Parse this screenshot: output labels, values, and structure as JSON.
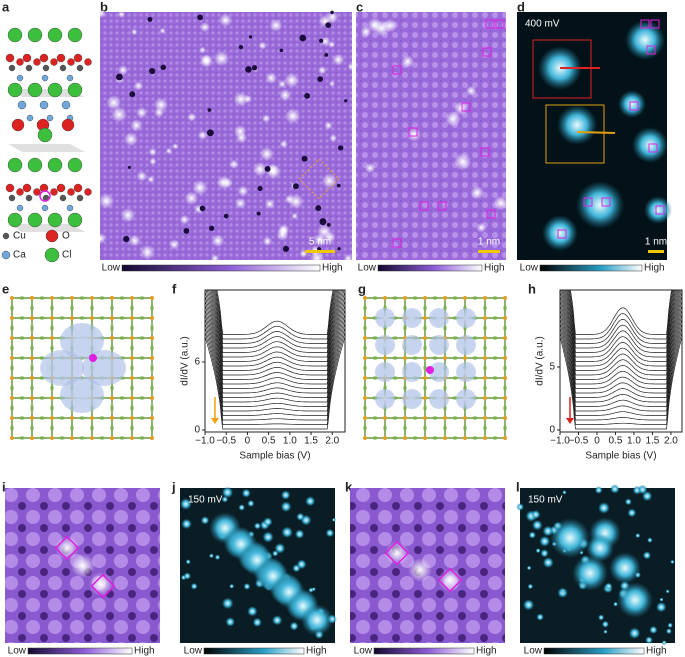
{
  "panel_labels": [
    "a",
    "b",
    "c",
    "d",
    "e",
    "f",
    "g",
    "h",
    "i",
    "j",
    "k",
    "l"
  ],
  "legend": [
    "Cu",
    "O",
    "Ca",
    "Cl"
  ],
  "scale_bars": {
    "b": "5 nm",
    "c": "1 nm",
    "d": "1 nm",
    "i": "5 Å",
    "k": "5 Å"
  },
  "energies": {
    "d": "400 mV",
    "j": "150 mV",
    "l": "150 mV"
  },
  "colorbar": {
    "low": "Low",
    "high": "High"
  },
  "plots": {
    "f": {
      "ylabel": "dI/dV (a.u.)",
      "xlabel": "Sample bias (V)",
      "xticks": [
        "−1.0",
        "−0.5",
        "0",
        "0.5",
        "1.0",
        "1.5",
        "2.0"
      ],
      "yticks": [
        "0",
        "6"
      ]
    },
    "h": {
      "ylabel": "dI/dV (a.u.)",
      "xlabel": "Sample bias (V)",
      "xticks": [
        "−1.0",
        "−0.5",
        "0",
        "0.5",
        "1.0",
        "1.5",
        "2.0"
      ],
      "yticks": [
        "0",
        "5"
      ]
    }
  }
}
